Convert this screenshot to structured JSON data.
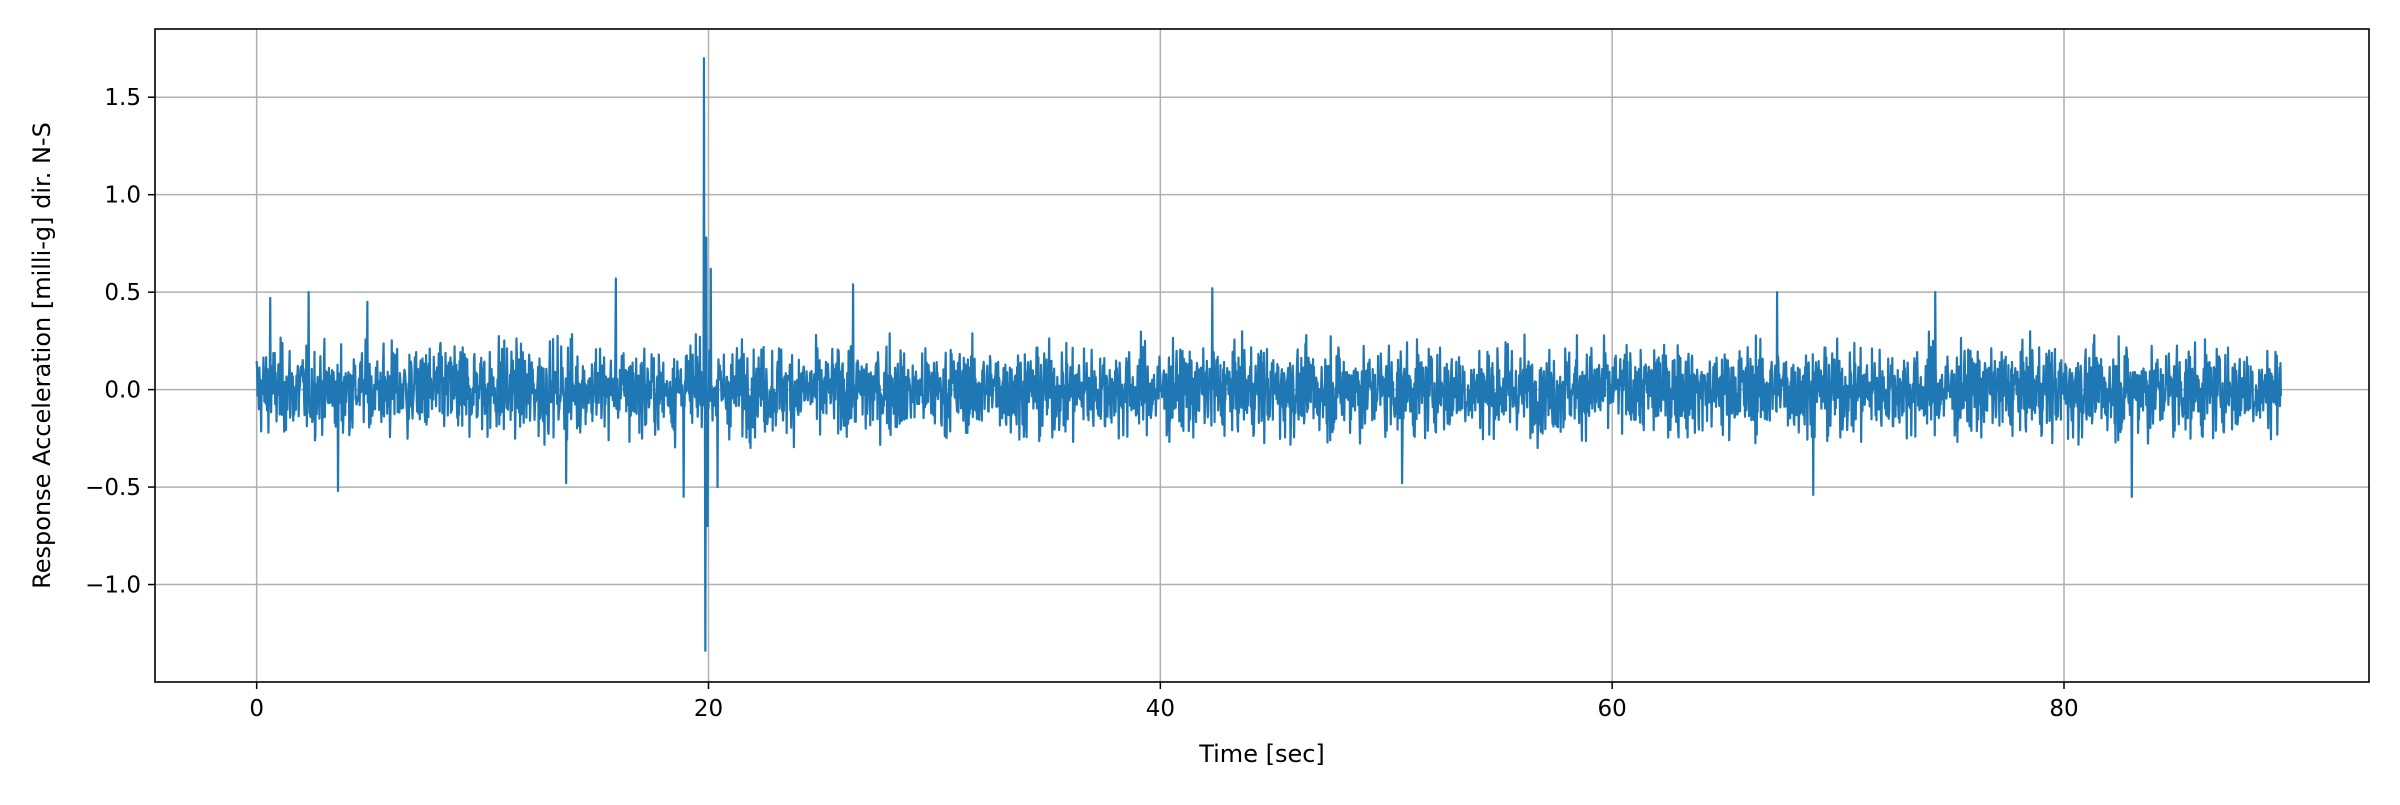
{
  "chart_data": {
    "type": "line",
    "title": "",
    "xlabel": "Time [sec]",
    "ylabel": "Response Acceleration [milli-g] dir. N-S",
    "xlim": [
      -4.5,
      93.5
    ],
    "ylim": [
      -1.5,
      1.85
    ],
    "xticks": [
      0,
      20,
      40,
      60,
      80
    ],
    "xtick_labels": [
      "0",
      "20",
      "40",
      "60",
      "80"
    ],
    "yticks": [
      -1.0,
      -0.5,
      0.0,
      0.5,
      1.0,
      1.5
    ],
    "ytick_labels": [
      "−1.0",
      "−0.5",
      "0.0",
      "0.5",
      "1.0",
      "1.5"
    ],
    "grid": true,
    "legend": "none",
    "series": [
      {
        "color": "#1f77b4",
        "sampling": {
          "t_start": 0.0,
          "t_end": 89.6,
          "dt": 0.02
        },
        "envelope": {
          "typical_positive": 0.3,
          "typical_negative": -0.3
        },
        "peaks": [
          {
            "t": 0.6,
            "value": 0.47
          },
          {
            "t": 2.3,
            "value": 0.5
          },
          {
            "t": 3.6,
            "value": -0.52
          },
          {
            "t": 4.9,
            "value": 0.45
          },
          {
            "t": 13.7,
            "value": -0.48
          },
          {
            "t": 15.9,
            "value": 0.57
          },
          {
            "t": 18.9,
            "value": -0.55
          },
          {
            "t": 19.8,
            "value": 1.7
          },
          {
            "t": 19.85,
            "value": -1.34
          },
          {
            "t": 19.9,
            "value": 0.78
          },
          {
            "t": 19.95,
            "value": -0.7
          },
          {
            "t": 20.1,
            "value": 0.62
          },
          {
            "t": 20.4,
            "value": -0.5
          },
          {
            "t": 26.4,
            "value": 0.54
          },
          {
            "t": 42.3,
            "value": 0.52
          },
          {
            "t": 50.7,
            "value": -0.48
          },
          {
            "t": 67.3,
            "value": 0.5
          },
          {
            "t": 68.9,
            "value": -0.54
          },
          {
            "t": 74.3,
            "value": 0.5
          },
          {
            "t": 83.0,
            "value": -0.55
          }
        ]
      }
    ]
  }
}
